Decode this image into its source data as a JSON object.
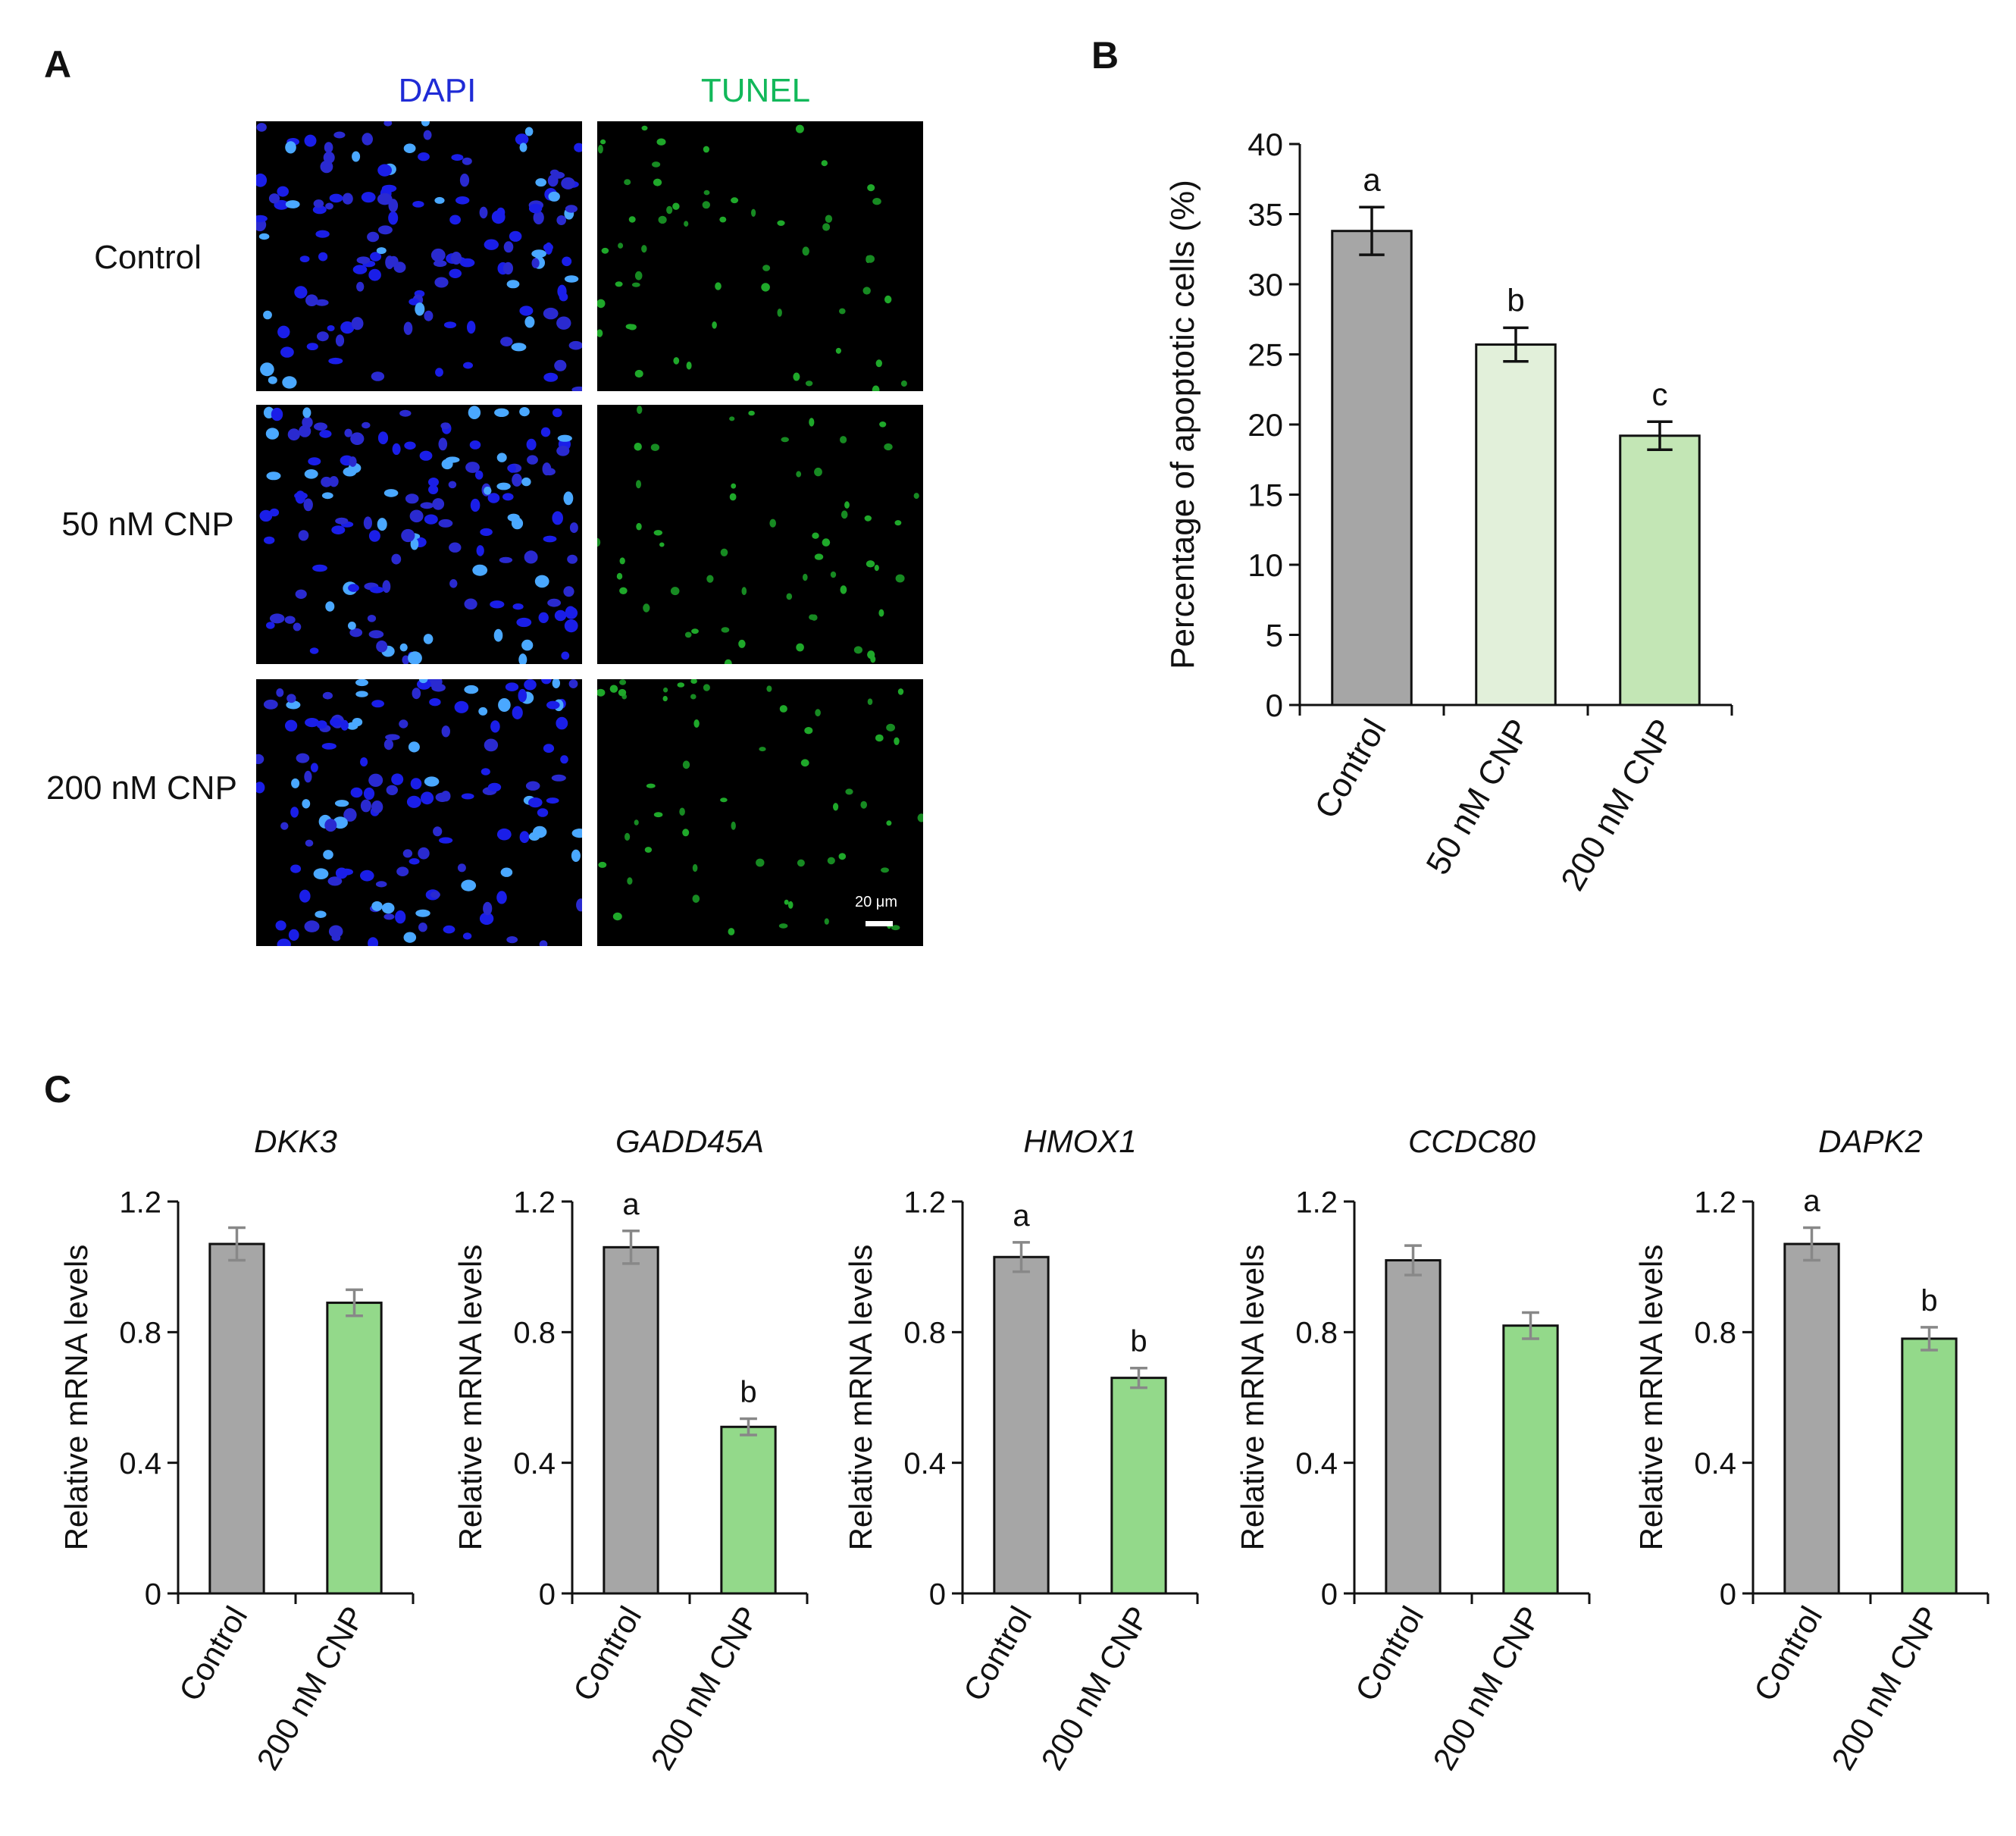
{
  "panels": {
    "a_letter": "A",
    "b_letter": "B",
    "c_letter": "C"
  },
  "panel_a": {
    "columns": [
      "DAPI",
      "TUNEL"
    ],
    "column_colors": [
      "#1f2bd6",
      "#12b85a"
    ],
    "rows": [
      "Control",
      "50 nM CNP",
      "200 nM CNP"
    ],
    "scale_bar_label": "20 μm"
  },
  "chart_data": [
    {
      "id": "B",
      "type": "bar",
      "title": "",
      "xlabel": "",
      "ylabel": "Percentage of apoptotic cells (%)",
      "categories": [
        "Control",
        "50 nM CNP",
        "200 nM CNP"
      ],
      "values": [
        33.8,
        25.7,
        19.2
      ],
      "errors": [
        1.7,
        1.2,
        1.0
      ],
      "sig_letters": [
        "a",
        "b",
        "c"
      ],
      "colors": [
        "#a6a6a6",
        "#e2f0da",
        "#c3e6b5"
      ],
      "ylim": [
        0,
        40
      ],
      "yticks": [
        0,
        5,
        10,
        15,
        20,
        25,
        30,
        35,
        40
      ]
    },
    {
      "id": "C1",
      "type": "bar",
      "title": "DKK3",
      "ylabel": "Relative mRNA levels",
      "categories": [
        "Control",
        "200 nM CNP"
      ],
      "values": [
        1.07,
        0.89
      ],
      "errors": [
        0.05,
        0.04
      ],
      "sig_letters": [
        "",
        ""
      ],
      "colors": [
        "#a6a6a6",
        "#93d98a"
      ],
      "ylim": [
        0,
        1.2
      ],
      "yticks": [
        "0",
        "0.4",
        "0.8",
        "1.2"
      ]
    },
    {
      "id": "C2",
      "type": "bar",
      "title": "GADD45A",
      "ylabel": "Relative mRNA levels",
      "categories": [
        "Control",
        "200 nM CNP"
      ],
      "values": [
        1.06,
        0.51
      ],
      "errors": [
        0.05,
        0.025
      ],
      "sig_letters": [
        "a",
        "b"
      ],
      "colors": [
        "#a6a6a6",
        "#93d98a"
      ],
      "ylim": [
        0,
        1.2
      ],
      "yticks": [
        "0",
        "0.4",
        "0.8",
        "1.2"
      ]
    },
    {
      "id": "C3",
      "type": "bar",
      "title": "HMOX1",
      "ylabel": "Relative mRNA levels",
      "categories": [
        "Control",
        "200 nM CNP"
      ],
      "values": [
        1.03,
        0.66
      ],
      "errors": [
        0.045,
        0.03
      ],
      "sig_letters": [
        "a",
        "b"
      ],
      "colors": [
        "#a6a6a6",
        "#93d98a"
      ],
      "ylim": [
        0,
        1.2
      ],
      "yticks": [
        "0",
        "0.4",
        "0.8",
        "1.2"
      ]
    },
    {
      "id": "C4",
      "type": "bar",
      "title": "CCDC80",
      "ylabel": "Relative mRNA levels",
      "categories": [
        "Control",
        "200 nM CNP"
      ],
      "values": [
        1.02,
        0.82
      ],
      "errors": [
        0.045,
        0.04
      ],
      "sig_letters": [
        "",
        ""
      ],
      "colors": [
        "#a6a6a6",
        "#93d98a"
      ],
      "ylim": [
        0,
        1.2
      ],
      "yticks": [
        "0",
        "0.4",
        "0.8",
        "1.2"
      ]
    },
    {
      "id": "C5",
      "type": "bar",
      "title": "DAPK2",
      "ylabel": "Relative mRNA levels",
      "categories": [
        "Control",
        "200 nM CNP"
      ],
      "values": [
        1.07,
        0.78
      ],
      "errors": [
        0.05,
        0.035
      ],
      "sig_letters": [
        "a",
        "b"
      ],
      "colors": [
        "#a6a6a6",
        "#93d98a"
      ],
      "ylim": [
        0,
        1.2
      ],
      "yticks": [
        "0",
        "0.4",
        "0.8",
        "1.2"
      ]
    }
  ]
}
